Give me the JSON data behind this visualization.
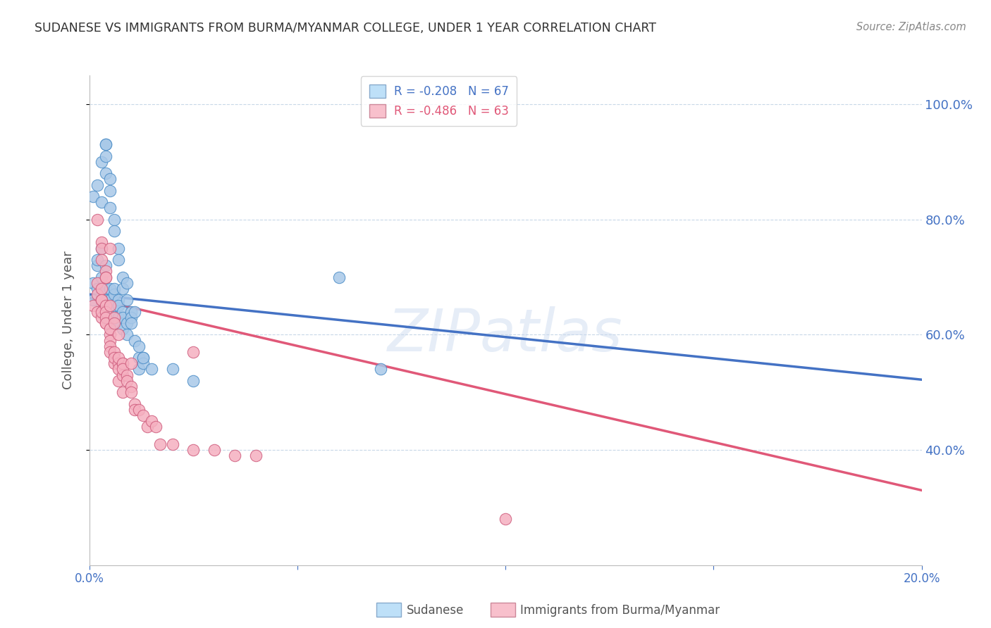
{
  "title": "SUDANESE VS IMMIGRANTS FROM BURMA/MYANMAR COLLEGE, UNDER 1 YEAR CORRELATION CHART",
  "source": "Source: ZipAtlas.com",
  "ylabel": "College, Under 1 year",
  "xlim": [
    0.0,
    0.2
  ],
  "ylim": [
    0.2,
    1.05
  ],
  "x_ticks": [
    0.0,
    0.05,
    0.1,
    0.15,
    0.2
  ],
  "y_ticks_right": [
    0.4,
    0.6,
    0.8,
    1.0
  ],
  "y_tick_labels": [
    "40.0%",
    "60.0%",
    "80.0%",
    "100.0%"
  ],
  "blue_scatter": [
    [
      0.001,
      0.66
    ],
    [
      0.001,
      0.69
    ],
    [
      0.002,
      0.72
    ],
    [
      0.002,
      0.68
    ],
    [
      0.002,
      0.73
    ],
    [
      0.003,
      0.7
    ],
    [
      0.003,
      0.75
    ],
    [
      0.003,
      0.65
    ],
    [
      0.003,
      0.67
    ],
    [
      0.004,
      0.72
    ],
    [
      0.004,
      0.68
    ],
    [
      0.004,
      0.65
    ],
    [
      0.004,
      0.66
    ],
    [
      0.004,
      0.63
    ],
    [
      0.005,
      0.68
    ],
    [
      0.005,
      0.62
    ],
    [
      0.005,
      0.65
    ],
    [
      0.005,
      0.63
    ],
    [
      0.005,
      0.66
    ],
    [
      0.006,
      0.67
    ],
    [
      0.006,
      0.64
    ],
    [
      0.006,
      0.68
    ],
    [
      0.006,
      0.65
    ],
    [
      0.007,
      0.63
    ],
    [
      0.007,
      0.66
    ],
    [
      0.007,
      0.62
    ],
    [
      0.007,
      0.65
    ],
    [
      0.008,
      0.64
    ],
    [
      0.008,
      0.63
    ],
    [
      0.008,
      0.61
    ],
    [
      0.009,
      0.62
    ],
    [
      0.009,
      0.6
    ],
    [
      0.01,
      0.64
    ],
    [
      0.01,
      0.63
    ],
    [
      0.011,
      0.64
    ],
    [
      0.011,
      0.59
    ],
    [
      0.012,
      0.56
    ],
    [
      0.012,
      0.54
    ],
    [
      0.013,
      0.56
    ],
    [
      0.013,
      0.55
    ],
    [
      0.001,
      0.84
    ],
    [
      0.002,
      0.86
    ],
    [
      0.003,
      0.9
    ],
    [
      0.003,
      0.83
    ],
    [
      0.004,
      0.88
    ],
    [
      0.004,
      0.93
    ],
    [
      0.004,
      0.93
    ],
    [
      0.004,
      0.91
    ],
    [
      0.005,
      0.87
    ],
    [
      0.005,
      0.85
    ],
    [
      0.005,
      0.82
    ],
    [
      0.006,
      0.8
    ],
    [
      0.006,
      0.78
    ],
    [
      0.007,
      0.75
    ],
    [
      0.007,
      0.73
    ],
    [
      0.008,
      0.7
    ],
    [
      0.008,
      0.68
    ],
    [
      0.009,
      0.69
    ],
    [
      0.009,
      0.66
    ],
    [
      0.01,
      0.62
    ],
    [
      0.012,
      0.58
    ],
    [
      0.013,
      0.56
    ],
    [
      0.015,
      0.54
    ],
    [
      0.02,
      0.54
    ],
    [
      0.025,
      0.52
    ],
    [
      0.06,
      0.7
    ],
    [
      0.07,
      0.54
    ]
  ],
  "pink_scatter": [
    [
      0.001,
      0.65
    ],
    [
      0.002,
      0.67
    ],
    [
      0.002,
      0.64
    ],
    [
      0.002,
      0.69
    ],
    [
      0.003,
      0.66
    ],
    [
      0.003,
      0.68
    ],
    [
      0.003,
      0.63
    ],
    [
      0.003,
      0.66
    ],
    [
      0.003,
      0.64
    ],
    [
      0.004,
      0.65
    ],
    [
      0.004,
      0.62
    ],
    [
      0.004,
      0.64
    ],
    [
      0.004,
      0.63
    ],
    [
      0.004,
      0.62
    ],
    [
      0.005,
      0.6
    ],
    [
      0.005,
      0.61
    ],
    [
      0.005,
      0.59
    ],
    [
      0.005,
      0.58
    ],
    [
      0.005,
      0.57
    ],
    [
      0.006,
      0.57
    ],
    [
      0.006,
      0.55
    ],
    [
      0.006,
      0.56
    ],
    [
      0.007,
      0.55
    ],
    [
      0.007,
      0.54
    ],
    [
      0.007,
      0.52
    ],
    [
      0.008,
      0.53
    ],
    [
      0.008,
      0.55
    ],
    [
      0.008,
      0.5
    ],
    [
      0.002,
      0.8
    ],
    [
      0.003,
      0.76
    ],
    [
      0.003,
      0.75
    ],
    [
      0.003,
      0.73
    ],
    [
      0.004,
      0.71
    ],
    [
      0.004,
      0.7
    ],
    [
      0.004,
      0.7
    ],
    [
      0.005,
      0.75
    ],
    [
      0.005,
      0.65
    ],
    [
      0.006,
      0.63
    ],
    [
      0.006,
      0.62
    ],
    [
      0.007,
      0.6
    ],
    [
      0.007,
      0.56
    ],
    [
      0.008,
      0.55
    ],
    [
      0.008,
      0.54
    ],
    [
      0.009,
      0.53
    ],
    [
      0.009,
      0.52
    ],
    [
      0.01,
      0.55
    ],
    [
      0.01,
      0.51
    ],
    [
      0.01,
      0.5
    ],
    [
      0.011,
      0.48
    ],
    [
      0.011,
      0.47
    ],
    [
      0.012,
      0.47
    ],
    [
      0.013,
      0.46
    ],
    [
      0.014,
      0.44
    ],
    [
      0.015,
      0.45
    ],
    [
      0.016,
      0.44
    ],
    [
      0.017,
      0.41
    ],
    [
      0.02,
      0.41
    ],
    [
      0.025,
      0.4
    ],
    [
      0.03,
      0.4
    ],
    [
      0.035,
      0.39
    ],
    [
      0.04,
      0.39
    ],
    [
      0.025,
      0.57
    ],
    [
      0.1,
      0.28
    ]
  ],
  "blue_line_x": [
    0.0,
    0.2
  ],
  "blue_line_y": [
    0.67,
    0.522
  ],
  "pink_line_x": [
    0.0,
    0.2
  ],
  "pink_line_y": [
    0.664,
    0.33
  ],
  "blue_scatter_color": "#a8c8e8",
  "blue_scatter_edge": "#5090c8",
  "pink_scatter_color": "#f5b0c0",
  "pink_scatter_edge": "#d06080",
  "blue_line_color": "#4472c4",
  "pink_line_color": "#e05878",
  "legend_blue_fill": "#bee0f8",
  "legend_pink_fill": "#f8c0cc",
  "watermark": "ZIPatlas",
  "background_color": "#ffffff",
  "grid_color": "#c8d8e8",
  "title_color": "#333333",
  "source_color": "#888888",
  "axis_color": "#4472c4"
}
